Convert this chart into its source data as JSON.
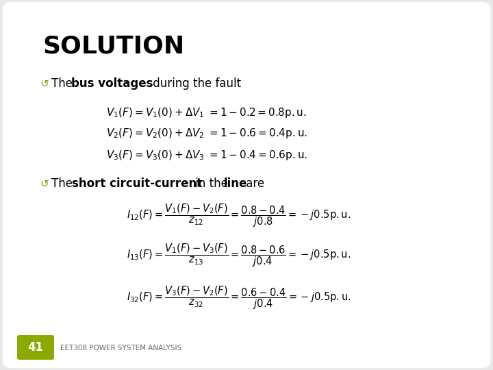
{
  "title": "SOLUTION",
  "bg_color": "#ffffff",
  "slide_bg": "#e8e8e8",
  "title_color": "#000000",
  "bullet_color": "#8a9a00",
  "text_color": "#000000",
  "footer_text": "EET308 POWER SYSTEM ANALYSIS",
  "slide_number": "41",
  "slide_number_bg": "#8aaa00",
  "eq_v1": "$V_1(F)=V_1(0)+\\Delta V_1\\;=1-0.2=0.8\\mathrm{p.u.}$",
  "eq_v2": "$V_2(F)=V_2(0)+\\Delta V_2\\;=1-0.6=0.4\\mathrm{p.u.}$",
  "eq_v3": "$V_3(F)=V_3(0)+\\Delta V_3\\;=1-0.4=0.6\\mathrm{p.u.}$",
  "eq_i12": "$I_{12}(F)=\\dfrac{V_1(F)-V_2(F)}{z_{12}}=\\dfrac{0.8-0.4}{j0.8}=-j0.5\\mathrm{p.u.}$",
  "eq_i13": "$I_{13}(F)=\\dfrac{V_1(F)-V_3(F)}{z_{13}}=\\dfrac{0.8-0.6}{j0.4}=-j0.5\\mathrm{p.u.}$",
  "eq_i32": "$I_{32}(F)=\\dfrac{V_3(F)-V_2(F)}{z_{32}}=\\dfrac{0.6-0.4}{j0.4}=-j0.5\\mathrm{p.u.}$"
}
